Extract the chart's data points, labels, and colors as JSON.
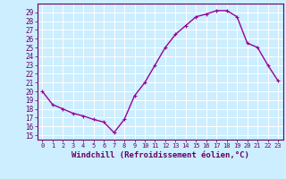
{
  "x": [
    0,
    1,
    2,
    3,
    4,
    5,
    6,
    7,
    8,
    9,
    10,
    11,
    12,
    13,
    14,
    15,
    16,
    17,
    18,
    19,
    20,
    21,
    22,
    23
  ],
  "y": [
    20.0,
    18.5,
    18.0,
    17.5,
    17.2,
    16.8,
    16.5,
    15.3,
    16.8,
    19.5,
    21.0,
    23.0,
    25.0,
    26.5,
    27.5,
    28.5,
    28.8,
    29.2,
    29.2,
    28.5,
    25.5,
    25.0,
    23.0,
    21.2
  ],
  "line_color": "#990099",
  "marker": "+",
  "marker_size": 3,
  "linewidth": 1.0,
  "background_color": "#cceeff",
  "plot_bg_color": "#cceeff",
  "grid_color": "#ffffff",
  "xlabel": "Windchill (Refroidissement éolien,°C)",
  "xlabel_fontsize": 6.5,
  "xtick_fontsize": 5.0,
  "ytick_fontsize": 5.5,
  "xtick_labels": [
    "0",
    "1",
    "2",
    "3",
    "4",
    "5",
    "6",
    "7",
    "8",
    "9",
    "10",
    "11",
    "12",
    "13",
    "14",
    "15",
    "16",
    "17",
    "18",
    "19",
    "20",
    "21",
    "22",
    "23"
  ],
  "ytick_vals": [
    15,
    16,
    17,
    18,
    19,
    20,
    21,
    22,
    23,
    24,
    25,
    26,
    27,
    28,
    29
  ],
  "ytick_labels": [
    "15",
    "16",
    "17",
    "18",
    "19",
    "20",
    "21",
    "22",
    "23",
    "24",
    "25",
    "26",
    "27",
    "28",
    "29"
  ],
  "ylim": [
    14.5,
    30.0
  ],
  "xlim": [
    -0.5,
    23.5
  ],
  "tick_color": "#660066",
  "axis_color": "#660066",
  "label_color": "#660066"
}
